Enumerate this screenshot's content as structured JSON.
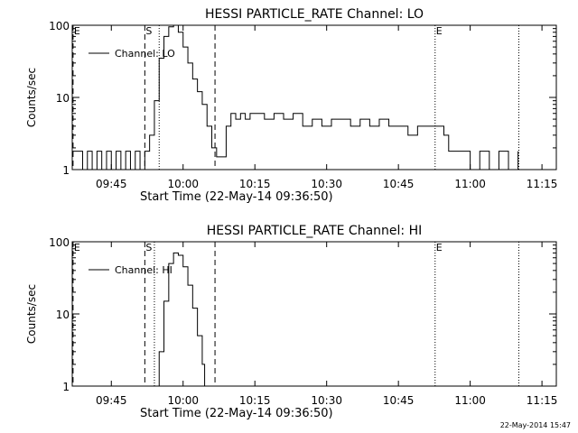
{
  "chart_data": [
    {
      "type": "line",
      "title": "HESSI PARTICLE_RATE Channel: LO",
      "xlabel": "Start Time (22-May-14 09:36:50)",
      "ylabel": "Counts/sec",
      "yscale": "log",
      "ylim": [
        1,
        100
      ],
      "yticks": [
        "1",
        "10",
        "100"
      ],
      "xlim": [
        "09:36:50",
        "11:18:00"
      ],
      "xticks": [
        "09:45",
        "10:00",
        "10:15",
        "10:30",
        "10:45",
        "11:00",
        "11:15"
      ],
      "legend": {
        "position": "top-left",
        "entries": [
          "Channel: LO"
        ]
      },
      "markers": [
        {
          "time": "09:37:00",
          "style": "dashed",
          "label": "E"
        },
        {
          "time": "09:52:00",
          "style": "dashed",
          "label": "S"
        },
        {
          "time": "09:55:00",
          "style": "dotted",
          "label": ""
        },
        {
          "time": "10:06:40",
          "style": "dashed",
          "label": ""
        },
        {
          "time": "10:52:40",
          "style": "dotted",
          "label": "E"
        },
        {
          "time": "11:10:10",
          "style": "dotted",
          "label": ""
        }
      ],
      "series": [
        {
          "name": "Channel: LO",
          "x": [
            "09:36:50",
            "09:38:00",
            "09:39:00",
            "09:40:00",
            "09:41:00",
            "09:42:00",
            "09:43:00",
            "09:44:00",
            "09:45:00",
            "09:46:00",
            "09:47:00",
            "09:48:00",
            "09:49:00",
            "09:50:00",
            "09:51:00",
            "09:52:00",
            "09:53:00",
            "09:54:00",
            "09:55:00",
            "09:56:00",
            "09:57:00",
            "09:58:00",
            "09:59:00",
            "10:00:00",
            "10:01:00",
            "10:02:00",
            "10:03:00",
            "10:04:00",
            "10:05:00",
            "10:06:00",
            "10:07:00",
            "10:08:00",
            "10:09:00",
            "10:10:00",
            "10:11:00",
            "10:12:00",
            "10:13:00",
            "10:14:00",
            "10:15:00",
            "10:17:00",
            "10:19:00",
            "10:21:00",
            "10:23:00",
            "10:25:00",
            "10:27:00",
            "10:29:00",
            "10:31:00",
            "10:33:00",
            "10:35:00",
            "10:37:00",
            "10:39:00",
            "10:41:00",
            "10:43:00",
            "10:45:00",
            "10:47:00",
            "10:49:00",
            "10:51:00",
            "10:52:30",
            "10:53:30",
            "10:54:30",
            "10:55:30",
            "10:56:30",
            "10:58:00",
            "11:00:00",
            "11:02:00",
            "11:04:00",
            "11:06:00",
            "11:08:00",
            "11:10:00"
          ],
          "y": [
            1.8,
            1.8,
            1,
            1.8,
            1,
            1.8,
            1,
            1.8,
            1,
            1.8,
            1,
            1.8,
            1,
            1.8,
            1,
            1.8,
            3,
            9,
            35,
            70,
            95,
            100,
            80,
            50,
            30,
            18,
            12,
            8,
            4,
            2,
            1.5,
            1.5,
            4,
            6,
            5,
            6,
            5,
            6,
            6,
            5,
            6,
            5,
            6,
            4,
            5,
            4,
            5,
            5,
            4,
            5,
            4,
            5,
            4,
            4,
            3,
            4,
            4,
            4,
            4,
            3,
            1.8,
            1.8,
            1.8,
            1,
            1.8,
            1,
            1.8,
            1,
            1.8
          ]
        }
      ]
    },
    {
      "type": "line",
      "title": "HESSI PARTICLE_RATE Channel: HI",
      "xlabel": "Start Time (22-May-14 09:36:50)",
      "ylabel": "Counts/sec",
      "yscale": "log",
      "ylim": [
        1,
        100
      ],
      "yticks": [
        "1",
        "10",
        "100"
      ],
      "xlim": [
        "09:36:50",
        "11:18:00"
      ],
      "xticks": [
        "09:45",
        "10:00",
        "10:15",
        "10:30",
        "10:45",
        "11:00",
        "11:15"
      ],
      "legend": {
        "position": "top-left",
        "entries": [
          "Channel: HI"
        ]
      },
      "markers": [
        {
          "time": "09:37:00",
          "style": "dashed",
          "label": "E"
        },
        {
          "time": "09:52:00",
          "style": "dashed",
          "label": "S"
        },
        {
          "time": "09:54:00",
          "style": "dotted",
          "label": ""
        },
        {
          "time": "10:06:40",
          "style": "dashed",
          "label": ""
        },
        {
          "time": "10:52:40",
          "style": "dotted",
          "label": "E"
        },
        {
          "time": "11:10:10",
          "style": "dotted",
          "label": ""
        }
      ],
      "series": [
        {
          "name": "Channel: HI",
          "x": [
            "09:54:20",
            "09:55:00",
            "09:56:00",
            "09:57:00",
            "09:58:00",
            "09:59:00",
            "10:00:00",
            "10:01:00",
            "10:02:00",
            "10:03:00",
            "10:04:00",
            "10:04:30"
          ],
          "y": [
            1,
            3,
            15,
            50,
            70,
            65,
            45,
            25,
            12,
            5,
            2,
            1
          ]
        }
      ]
    }
  ],
  "footer": "22-May-2014 15:47"
}
